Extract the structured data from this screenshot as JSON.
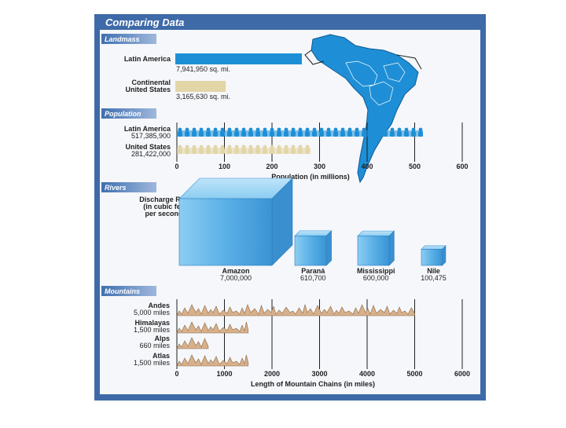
{
  "title": "Comparing Data",
  "colors": {
    "frame": "#3f6aa8",
    "panel": "#f5f7fb",
    "header_bar": "#4a78b8",
    "blue_bar": "#1e8fd6",
    "tan_bar": "#e2d6a6",
    "water": "#5ab0e6",
    "mountain": "#d8b08a",
    "map_land": "#1e8fd6"
  },
  "chart_data": [
    {
      "type": "bar",
      "section": "Landmass",
      "categories": [
        "Latin America",
        "Continental United States"
      ],
      "values": [
        7941950,
        3165630
      ],
      "value_labels": [
        "7,941,950 sq. mi.",
        "3,165,630 sq. mi."
      ],
      "bar_colors": [
        "#1e8fd6",
        "#e2d6a6"
      ],
      "unit": "sq. mi."
    },
    {
      "type": "bar",
      "section": "Population",
      "categories": [
        "Latin America",
        "United States"
      ],
      "values": [
        517385900,
        281422000
      ],
      "value_labels": [
        "517,385,900",
        "281,422,000"
      ],
      "bar_colors": [
        "#1e8fd6",
        "#e2d6a6"
      ],
      "xlabel": "Population (in millions)",
      "xticks": [
        "0",
        "100",
        "200",
        "300",
        "400",
        "500",
        "600"
      ],
      "xlim": [
        0,
        600
      ],
      "grid": true
    },
    {
      "type": "bar",
      "section": "Rivers",
      "ylabel": "Discharge Rate (in cubic feet per second)",
      "categories": [
        "Amazon",
        "Paraná",
        "Mississippi",
        "Nile"
      ],
      "values": [
        7000000,
        610700,
        600000,
        100475
      ],
      "value_labels": [
        "7,000,000",
        "610,700",
        "600,000",
        "100,475"
      ]
    },
    {
      "type": "bar",
      "section": "Mountains",
      "categories": [
        "Andes",
        "Himalayas",
        "Alps",
        "Atlas"
      ],
      "values": [
        5000,
        1500,
        660,
        1500
      ],
      "value_labels": [
        "5,000 miles",
        "1,500 miles",
        "660 miles",
        "1,500 miles"
      ],
      "xlabel": "Length of Mountain Chains (in miles)",
      "xticks": [
        "0",
        "1000",
        "2000",
        "3000",
        "4000",
        "5000",
        "6000"
      ],
      "xlim": [
        0,
        6000
      ],
      "grid": true
    }
  ],
  "sections": {
    "landmass": "Landmass",
    "population": "Population",
    "rivers": "Rivers",
    "mountains": "Mountains"
  },
  "landmass_labels": {
    "latin_america": "Latin America",
    "us_line1": "Continental",
    "us_line2": "United States"
  },
  "population_labels": {
    "la_name": "Latin America",
    "us_name": "United States"
  },
  "rivers_labels": {
    "ylabel_line1": "Discharge Rate",
    "ylabel_line2": "(in cubic feet",
    "ylabel_line3": "per second)"
  }
}
